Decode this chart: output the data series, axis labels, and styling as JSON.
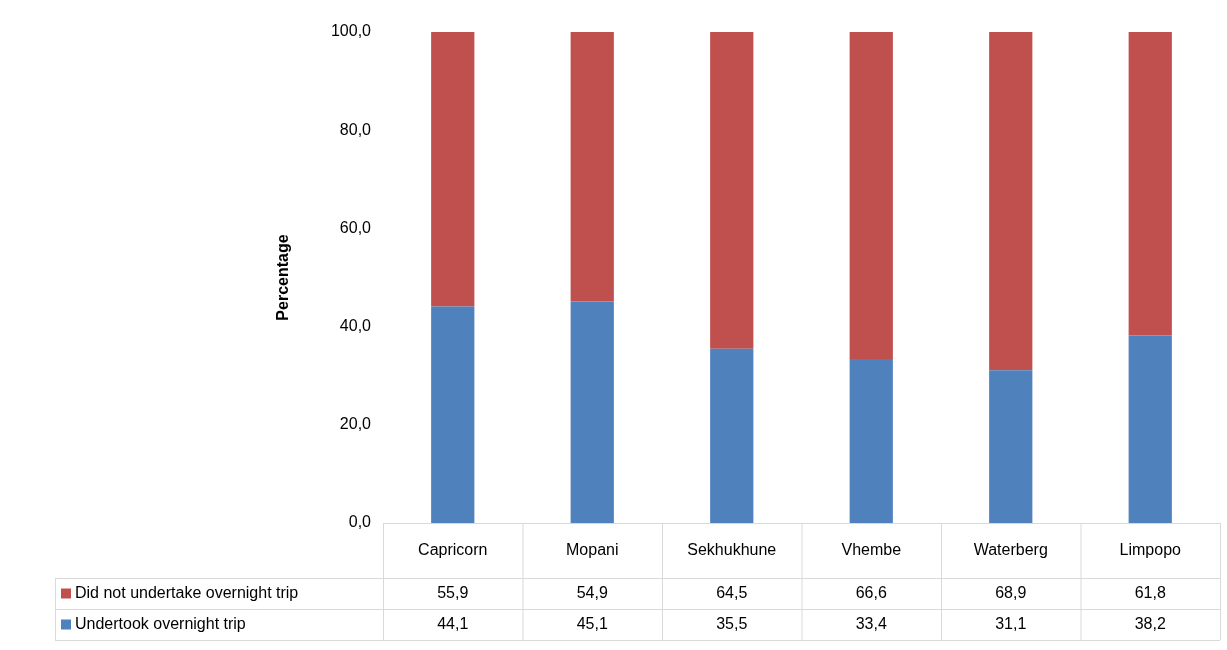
{
  "chart_data": {
    "type": "bar",
    "stacked": true,
    "ylabel": "Percentage",
    "categories": [
      "Capricorn",
      "Mopani",
      "Sekhukhune",
      "Vhembe",
      "Waterberg",
      "Limpopo"
    ],
    "series": [
      {
        "name": "Undertook overnight trip",
        "color": "#4f81bd",
        "values": [
          44.1,
          45.1,
          35.5,
          33.4,
          31.1,
          38.2
        ],
        "value_labels": [
          "44,1",
          "45,1",
          "35,5",
          "33,4",
          "31,1",
          "38,2"
        ]
      },
      {
        "name": "Did not undertake overnight trip",
        "color": "#c0504d",
        "values": [
          55.9,
          54.9,
          64.5,
          66.6,
          68.9,
          61.8
        ],
        "value_labels": [
          "55,9",
          "54,9",
          "64,5",
          "66,6",
          "68,9",
          "61,8"
        ]
      }
    ],
    "ylim": [
      0,
      100
    ],
    "yticks": [
      {
        "value": 0,
        "label": "0,0"
      },
      {
        "value": 20,
        "label": "20,0"
      },
      {
        "value": 40,
        "label": "40,0"
      },
      {
        "value": 60,
        "label": "60,0"
      },
      {
        "value": 80,
        "label": "80,0"
      },
      {
        "value": 100,
        "label": "100,0"
      }
    ],
    "grid": false,
    "legend": "bottom"
  }
}
